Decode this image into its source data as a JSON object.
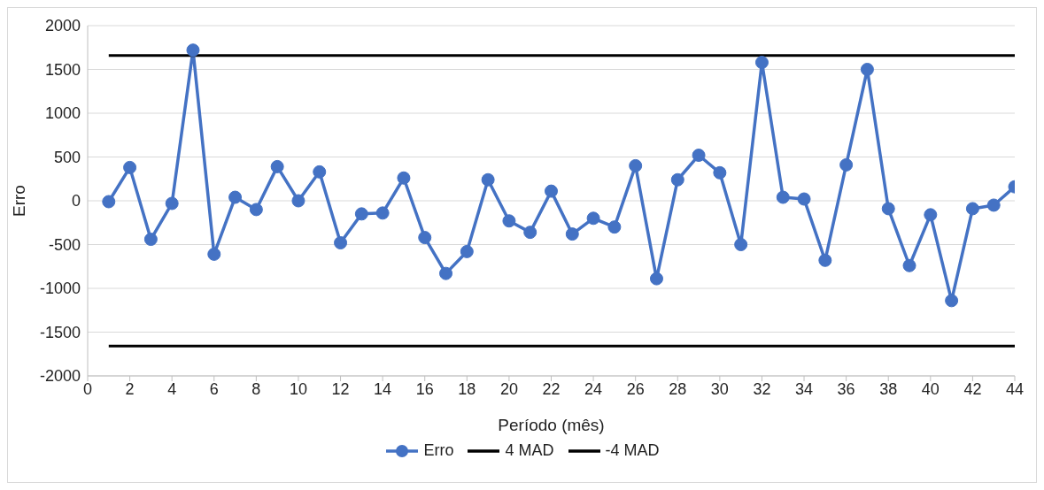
{
  "chart_data": {
    "type": "line",
    "xlabel": "Período (mês)",
    "ylabel": "Erro",
    "xlim": [
      0,
      44
    ],
    "xticks": [
      0,
      2,
      4,
      6,
      8,
      10,
      12,
      14,
      16,
      18,
      20,
      22,
      24,
      26,
      28,
      30,
      32,
      34,
      36,
      38,
      40,
      42,
      44
    ],
    "ylim": [
      -2000,
      2000
    ],
    "yticks": [
      -2000,
      -1500,
      -1000,
      -500,
      0,
      500,
      1000,
      1500,
      2000
    ],
    "grid": "y",
    "legend": "bottom",
    "marker": "circle",
    "line_style": "solid",
    "x": [
      1,
      2,
      3,
      4,
      5,
      6,
      7,
      8,
      9,
      10,
      11,
      12,
      13,
      14,
      15,
      16,
      17,
      18,
      19,
      20,
      21,
      22,
      23,
      24,
      25,
      26,
      27,
      28,
      29,
      30,
      31,
      32,
      33,
      34,
      35,
      36,
      37,
      38,
      39,
      40,
      41,
      42,
      43,
      44
    ],
    "series": [
      {
        "name": "Erro",
        "color": "#4472c4",
        "values": [
          -10,
          380,
          -440,
          -30,
          1720,
          -610,
          40,
          -100,
          390,
          0,
          330,
          -480,
          -150,
          -140,
          260,
          -420,
          -830,
          -580,
          240,
          -230,
          -360,
          110,
          -380,
          -200,
          -300,
          400,
          -890,
          240,
          520,
          320,
          -500,
          1580,
          40,
          20,
          -680,
          410,
          1500,
          -90,
          -740,
          -160,
          -1140,
          -90,
          -50,
          160
        ]
      },
      {
        "name": "4 MAD",
        "color": "#000000",
        "marker": "none",
        "values": [
          1660,
          1660,
          1660,
          1660,
          1660,
          1660,
          1660,
          1660,
          1660,
          1660,
          1660,
          1660,
          1660,
          1660,
          1660,
          1660,
          1660,
          1660,
          1660,
          1660,
          1660,
          1660,
          1660,
          1660,
          1660,
          1660,
          1660,
          1660,
          1660,
          1660,
          1660,
          1660,
          1660,
          1660,
          1660,
          1660,
          1660,
          1660,
          1660,
          1660,
          1660,
          1660,
          1660,
          1660
        ]
      },
      {
        "name": "-4 MAD",
        "color": "#000000",
        "marker": "none",
        "values": [
          -1660,
          -1660,
          -1660,
          -1660,
          -1660,
          -1660,
          -1660,
          -1660,
          -1660,
          -1660,
          -1660,
          -1660,
          -1660,
          -1660,
          -1660,
          -1660,
          -1660,
          -1660,
          -1660,
          -1660,
          -1660,
          -1660,
          -1660,
          -1660,
          -1660,
          -1660,
          -1660,
          -1660,
          -1660,
          -1660,
          -1660,
          -1660,
          -1660,
          -1660,
          -1660,
          -1660,
          -1660,
          -1660,
          -1660,
          -1660,
          -1660,
          -1660,
          -1660,
          -1660
        ]
      }
    ]
  }
}
